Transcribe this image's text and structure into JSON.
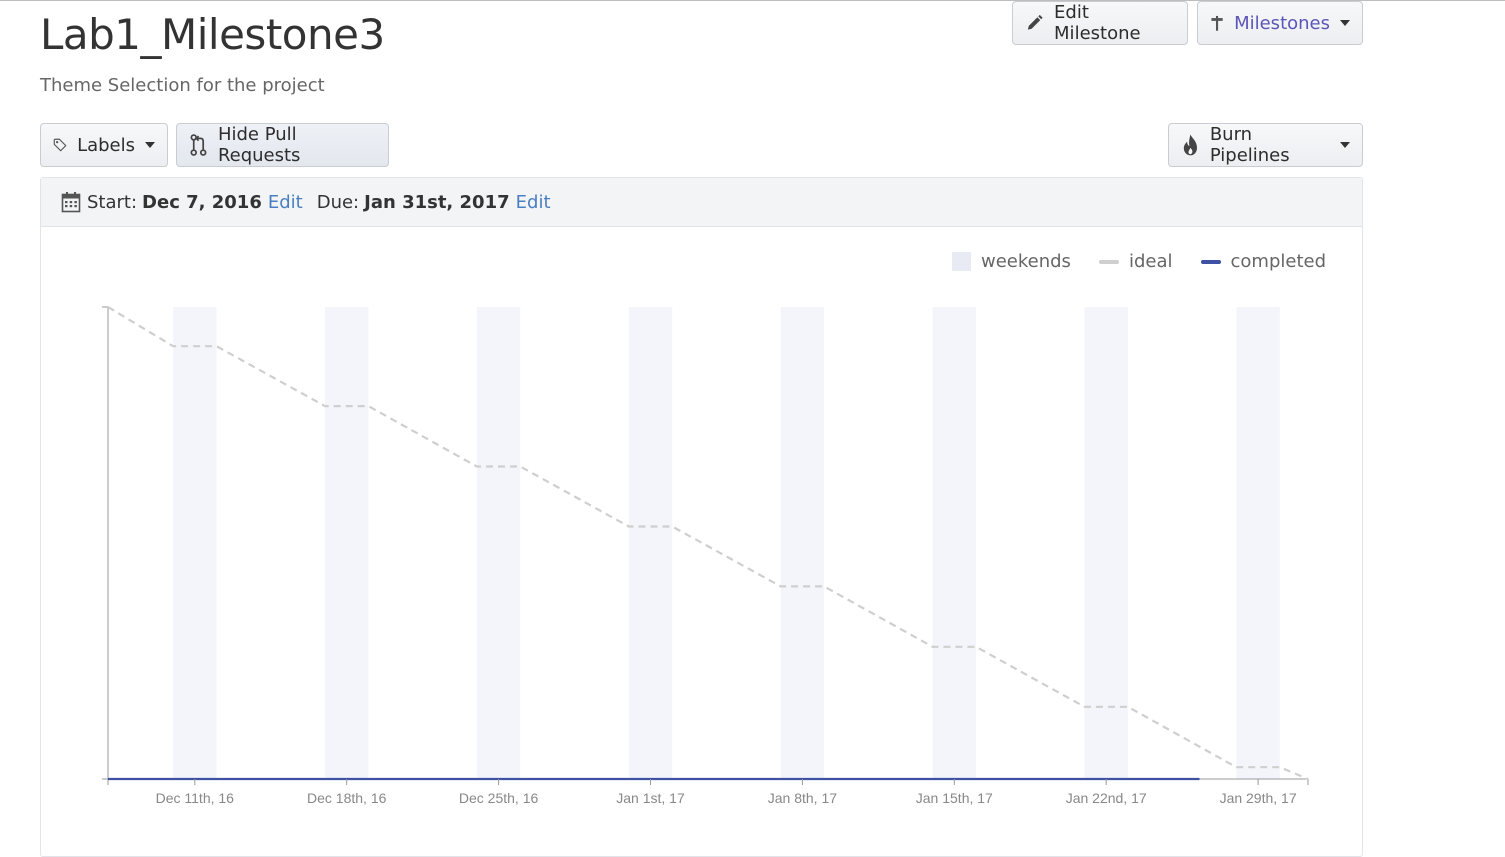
{
  "page": {
    "title": "Lab1_Milestone3",
    "subtitle": "Theme Selection for the project"
  },
  "toolbar": {
    "edit_milestone": "Edit Milestone",
    "milestones": "Milestones",
    "labels": "Labels",
    "hide_pull_requests": "Hide Pull Requests",
    "burn_pipelines": "Burn Pipelines"
  },
  "dates": {
    "start_label": "Start:",
    "start_value": "Dec 7, 2016",
    "start_edit": "Edit",
    "due_label": "Due:",
    "due_value": "Jan 31st, 2017",
    "due_edit": "Edit"
  },
  "colors": {
    "weekend": "#f4f5fb",
    "ideal": "#cfcfcf",
    "completed": "#3f51a2",
    "axis": "#999999",
    "link": "#4a7fc1"
  },
  "chart_data": {
    "type": "line",
    "title": "",
    "legend": [
      "weekends",
      "ideal",
      "completed"
    ],
    "legend_position": "top-right",
    "x_start": "Dec 7, 2016",
    "x_end": "Jan 31st, 2017",
    "x_ticks": [
      {
        "day": 4,
        "label": "Dec 11th, 16"
      },
      {
        "day": 11,
        "label": "Dec 18th, 16"
      },
      {
        "day": 18,
        "label": "Dec 25th, 16"
      },
      {
        "day": 25,
        "label": "Jan 1st, 17"
      },
      {
        "day": 32,
        "label": "Jan 8th, 17"
      },
      {
        "day": 39,
        "label": "Jan 15th, 17"
      },
      {
        "day": 46,
        "label": "Jan 22nd, 17"
      },
      {
        "day": 53,
        "label": "Jan 29th, 17"
      }
    ],
    "weekends": [
      [
        3,
        5
      ],
      [
        10,
        12
      ],
      [
        17,
        19
      ],
      [
        24,
        26
      ],
      [
        31,
        33
      ],
      [
        38,
        40
      ],
      [
        45,
        47
      ],
      [
        52,
        54
      ]
    ],
    "ylim": [
      0,
      100
    ],
    "series": [
      {
        "name": "ideal",
        "points": [
          [
            0,
            100
          ],
          [
            3,
            91.7
          ],
          [
            5,
            91.7
          ],
          [
            10,
            79
          ],
          [
            12,
            79
          ],
          [
            17,
            66.2
          ],
          [
            19,
            66.2
          ],
          [
            24,
            53.5
          ],
          [
            26,
            53.5
          ],
          [
            31,
            40.8
          ],
          [
            33,
            40.8
          ],
          [
            38,
            28
          ],
          [
            40,
            28
          ],
          [
            45,
            15.3
          ],
          [
            47,
            15.3
          ],
          [
            52,
            2.5
          ],
          [
            54,
            2.5
          ],
          [
            55.3,
            0
          ]
        ]
      },
      {
        "name": "completed",
        "points": [
          [
            0,
            0
          ],
          [
            50.3,
            0
          ]
        ]
      }
    ]
  }
}
